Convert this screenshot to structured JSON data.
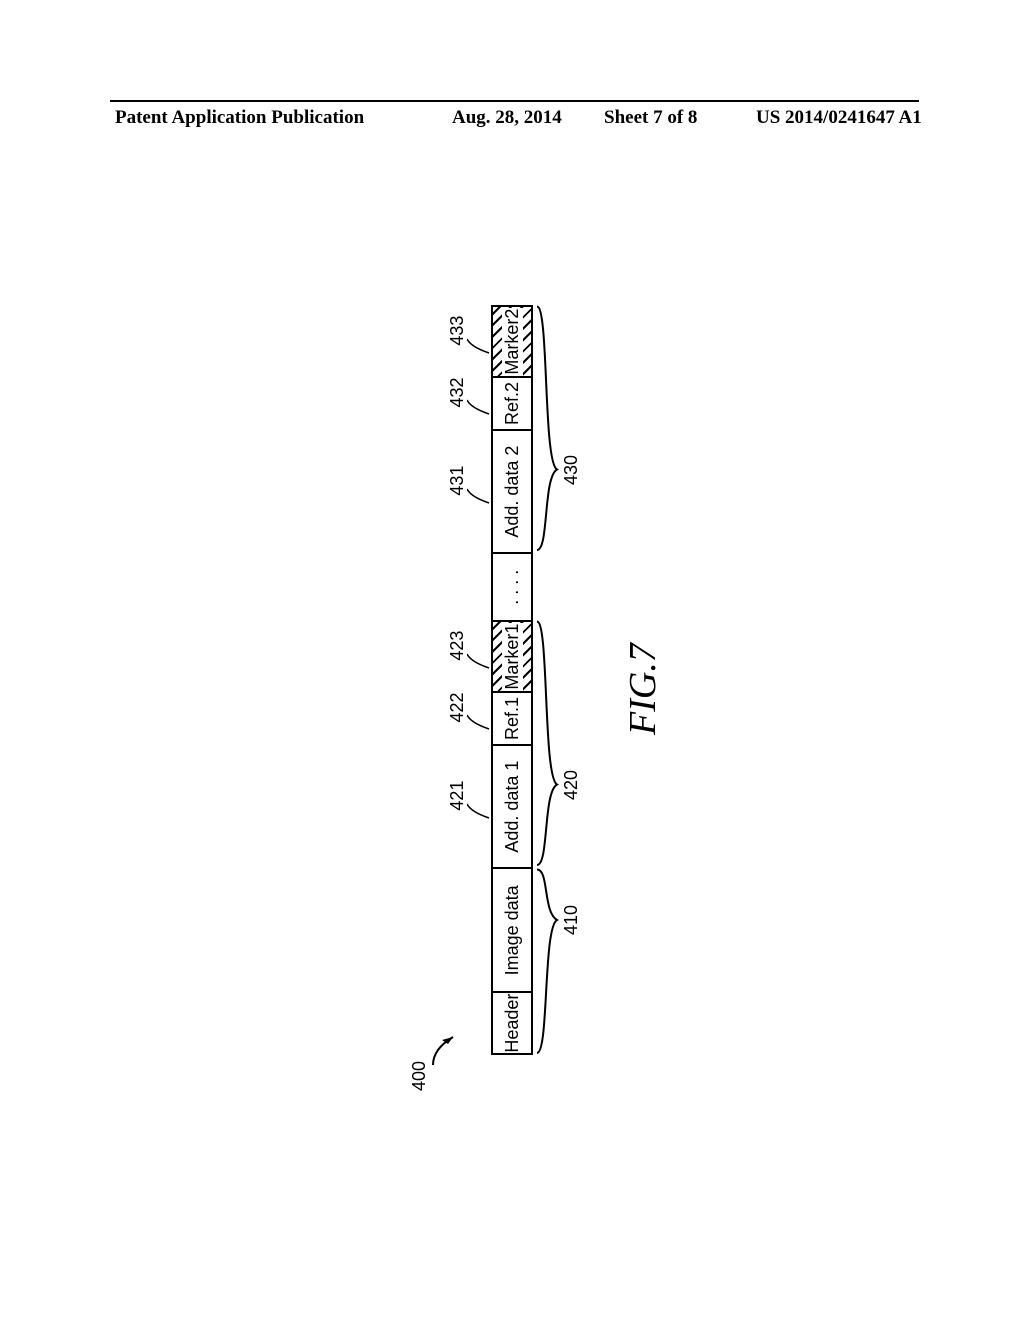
{
  "header": {
    "publication_label": "Patent Application Publication",
    "date": "Aug. 28, 2014",
    "sheet": "Sheet 7 of 8",
    "pub_number": "US 2014/0241647 A1"
  },
  "diagram": {
    "overall_id": "400",
    "figure_label": "FIG.7",
    "segments": [
      {
        "label": "Header",
        "width_pct": 8.5,
        "hatched": false,
        "top_id": null
      },
      {
        "label": "Image data",
        "width_pct": 16.5,
        "hatched": false,
        "top_id": null
      },
      {
        "label": "Add. data 1",
        "width_pct": 16.5,
        "hatched": false,
        "top_id": "421"
      },
      {
        "label": "Ref.1",
        "width_pct": 7,
        "hatched": false,
        "top_id": "422"
      },
      {
        "label": "Marker1",
        "width_pct": 9.5,
        "hatched": true,
        "top_id": "423"
      },
      {
        "label": ". . . .",
        "width_pct": 9,
        "hatched": false,
        "top_id": null
      },
      {
        "label": "Add. data 2",
        "width_pct": 16.5,
        "hatched": false,
        "top_id": "431"
      },
      {
        "label": "Ref.2",
        "width_pct": 7,
        "hatched": false,
        "top_id": "432"
      },
      {
        "label": "Marker2",
        "width_pct": 9.5,
        "hatched": true,
        "top_id": "433"
      }
    ],
    "bottom_groups": [
      {
        "id": "410",
        "start_pct": 0,
        "end_pct": 25.0,
        "label_pos_pct": 18.0
      },
      {
        "id": "420",
        "start_pct": 25.0,
        "end_pct": 58.0,
        "label_pos_pct": 36.0
      },
      {
        "id": "430",
        "start_pct": 67.0,
        "end_pct": 100.0,
        "label_pos_pct": 78.0
      }
    ],
    "colors": {
      "background": "#ffffff",
      "stroke": "#000000"
    }
  }
}
